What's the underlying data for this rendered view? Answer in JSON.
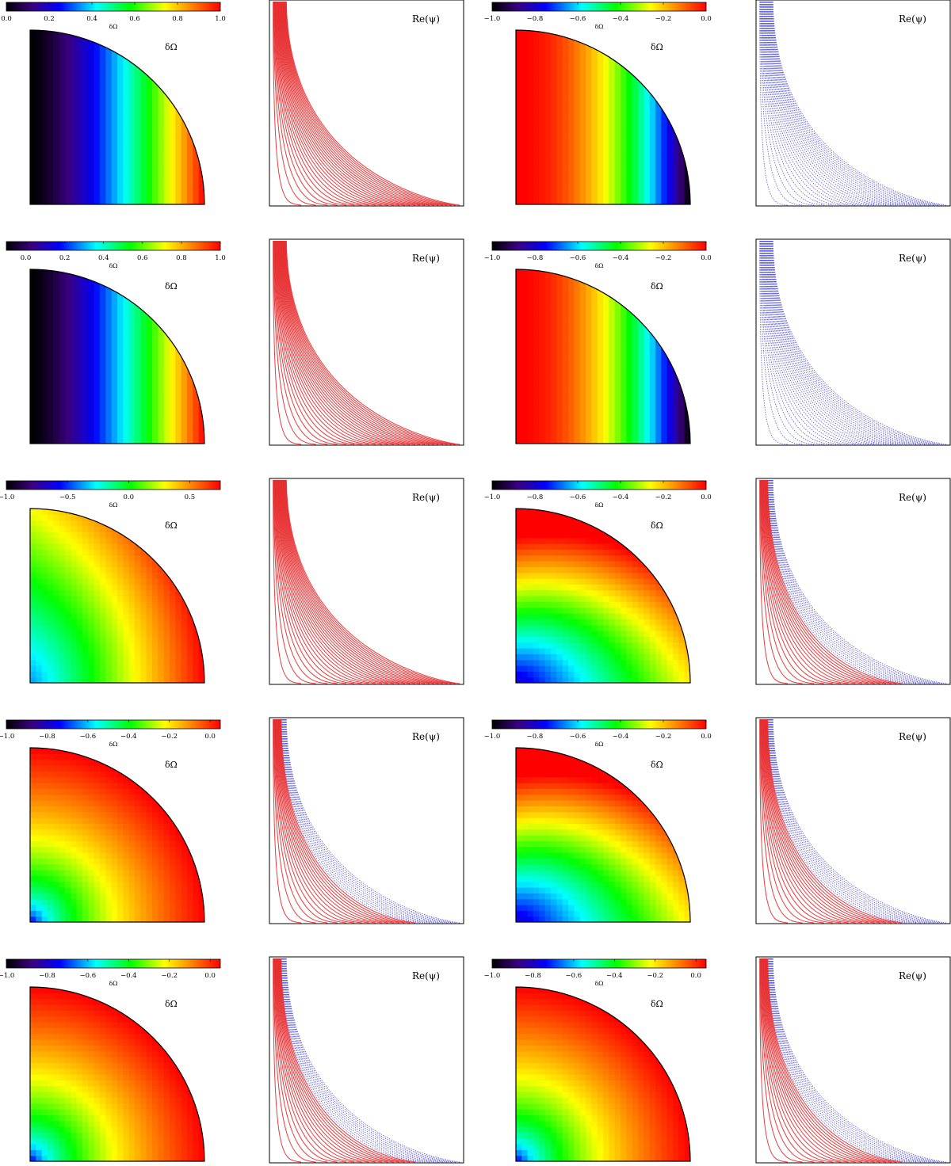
{
  "figure": {
    "colorbar_label": "δΩ",
    "omega_label": "δΩ",
    "psi_label": "Re(ψ)"
  },
  "colors": {
    "psi_positive": "#e41a1c",
    "psi_negative": "#2222cc",
    "frame": "#000000"
  },
  "chart_data": [
    {
      "type": "heatmap",
      "quantity": "δΩ",
      "row": 1,
      "column": 1,
      "colormap": "rainbow",
      "clim": [
        0.0,
        1.0
      ],
      "colorbar_ticks": [
        "0.0",
        "0.2",
        "0.4",
        "0.6",
        "0.8",
        "1.0"
      ],
      "colorbar_label": "δΩ",
      "pattern": "increasing with cylindrical radius"
    },
    {
      "type": "contour",
      "quantity": "Re(ψ)",
      "row": 1,
      "column": 2,
      "label": "Re(ψ)",
      "sign": "positive",
      "cells": []
    },
    {
      "type": "heatmap",
      "quantity": "δΩ",
      "row": 1,
      "column": 3,
      "colormap": "rainbow",
      "clim": [
        -1.0,
        0.0
      ],
      "colorbar_ticks": [
        "−1.0",
        "−0.8",
        "−0.6",
        "−0.4",
        "−0.2",
        "0.0"
      ],
      "colorbar_label": "δΩ",
      "pattern": "decreasing with cylindrical radius"
    },
    {
      "type": "contour",
      "quantity": "Re(ψ)",
      "row": 1,
      "column": 4,
      "label": "Re(ψ)",
      "sign": "negative",
      "cells": []
    },
    {
      "type": "heatmap",
      "quantity": "δΩ",
      "row": 2,
      "column": 1,
      "colormap": "rainbow",
      "clim": [
        -0.1,
        1.0
      ],
      "colorbar_ticks": [
        "0.0",
        "0.2",
        "0.4",
        "0.6",
        "0.8",
        "1.0"
      ],
      "colorbar_label": "δΩ",
      "pattern": "increasing with cylindrical radius, core minimum"
    },
    {
      "type": "contour",
      "quantity": "Re(ψ)",
      "row": 2,
      "column": 2,
      "label": "Re(ψ)",
      "sign": "positive",
      "cells": []
    },
    {
      "type": "heatmap",
      "quantity": "δΩ",
      "row": 2,
      "column": 3,
      "colormap": "rainbow",
      "clim": [
        -1.0,
        0.0
      ],
      "colorbar_ticks": [
        "−1.0",
        "−0.8",
        "−0.6",
        "−0.4",
        "−0.2",
        "0.0"
      ],
      "colorbar_label": "δΩ",
      "pattern": "decreasing with cylindrical radius"
    },
    {
      "type": "contour",
      "quantity": "Re(ψ)",
      "row": 2,
      "column": 4,
      "label": "Re(ψ)",
      "sign": "negative",
      "cells": []
    },
    {
      "type": "heatmap",
      "quantity": "δΩ",
      "row": 3,
      "column": 1,
      "colormap": "rainbow",
      "clim": [
        -1.0,
        0.75
      ],
      "colorbar_ticks": [
        "−1.0",
        "−0.5",
        "0.0",
        "0.5"
      ],
      "colorbar_label": "δΩ",
      "pattern": "minimum at centre, maximum at equator"
    },
    {
      "type": "contour",
      "quantity": "Re(ψ)",
      "row": 3,
      "column": 2,
      "label": "Re(ψ)",
      "sign": "positive",
      "cells": []
    },
    {
      "type": "heatmap",
      "quantity": "δΩ",
      "row": 3,
      "column": 3,
      "colormap": "rainbow",
      "clim": [
        -1.0,
        0.0
      ],
      "colorbar_ticks": [
        "−1.0",
        "−0.8",
        "−0.6",
        "−0.4",
        "−0.2",
        "0.0"
      ],
      "colorbar_label": "δΩ",
      "pattern": "minimum at centre, maximum near pole"
    },
    {
      "type": "contour",
      "quantity": "Re(ψ)",
      "row": 3,
      "column": 4,
      "label": "Re(ψ)",
      "sign": "mixed",
      "cells": [
        {
          "sign": "positive",
          "region": "inner"
        },
        {
          "sign": "negative",
          "region": "outer"
        }
      ]
    },
    {
      "type": "heatmap",
      "quantity": "δΩ",
      "row": 4,
      "column": 1,
      "colormap": "rainbow",
      "clim": [
        -1.0,
        0.05
      ],
      "colorbar_ticks": [
        "−1.0",
        "−0.8",
        "−0.6",
        "−0.4",
        "−0.2",
        "0.0"
      ],
      "colorbar_label": "δΩ",
      "pattern": "spherical shells, minimum at centre"
    },
    {
      "type": "contour",
      "quantity": "Re(ψ)",
      "row": 4,
      "column": 2,
      "label": "Re(ψ)",
      "sign": "mixed",
      "cells": [
        {
          "sign": "positive",
          "region": "inner"
        },
        {
          "sign": "negative",
          "region": "equatorial edge"
        }
      ]
    },
    {
      "type": "heatmap",
      "quantity": "δΩ",
      "row": 4,
      "column": 3,
      "colormap": "rainbow",
      "clim": [
        -1.0,
        0.0
      ],
      "colorbar_ticks": [
        "−1.0",
        "−0.8",
        "−0.6",
        "−0.4",
        "−0.2",
        "0.0"
      ],
      "colorbar_label": "δΩ",
      "pattern": "minimum at centre, maximum near pole"
    },
    {
      "type": "contour",
      "quantity": "Re(ψ)",
      "row": 4,
      "column": 4,
      "label": "Re(ψ)",
      "sign": "mixed",
      "cells": [
        {
          "sign": "positive",
          "region": "inner"
        },
        {
          "sign": "negative",
          "region": "outer"
        }
      ]
    },
    {
      "type": "heatmap",
      "quantity": "δΩ",
      "row": 5,
      "column": 1,
      "colormap": "rainbow",
      "clim": [
        -1.0,
        0.05
      ],
      "colorbar_ticks": [
        "−1.0",
        "−0.8",
        "−0.6",
        "−0.4",
        "−0.2",
        "0.0"
      ],
      "colorbar_label": "δΩ",
      "pattern": "spherical shells, minimum at centre"
    },
    {
      "type": "contour",
      "quantity": "Re(ψ)",
      "row": 5,
      "column": 2,
      "label": "Re(ψ)",
      "sign": "mixed",
      "cells": [
        {
          "sign": "positive",
          "region": "inner"
        },
        {
          "sign": "negative",
          "region": "equatorial edge"
        }
      ]
    },
    {
      "type": "heatmap",
      "quantity": "δΩ",
      "row": 5,
      "column": 3,
      "colormap": "rainbow",
      "clim": [
        -1.0,
        0.05
      ],
      "colorbar_ticks": [
        "−1.0",
        "−0.8",
        "−0.6",
        "−0.4",
        "−0.2",
        "0.0"
      ],
      "colorbar_label": "δΩ",
      "pattern": "spherical shells, minimum at centre"
    },
    {
      "type": "contour",
      "quantity": "Re(ψ)",
      "row": 5,
      "column": 4,
      "label": "Re(ψ)",
      "sign": "mixed",
      "cells": [
        {
          "sign": "positive",
          "region": "inner"
        },
        {
          "sign": "negative",
          "region": "equatorial edge"
        }
      ]
    }
  ]
}
